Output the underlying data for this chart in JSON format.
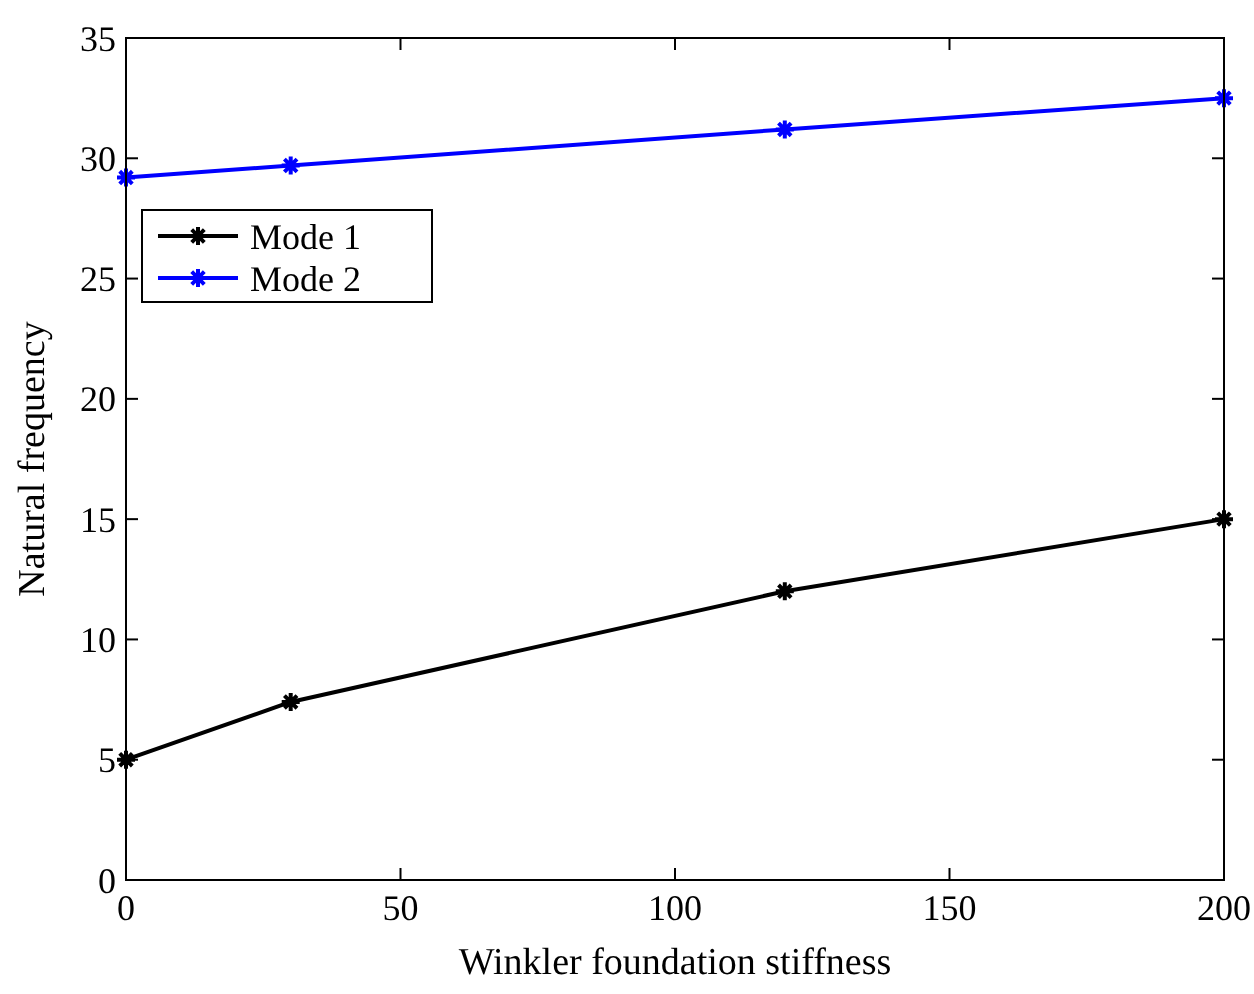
{
  "chart_data": {
    "type": "line",
    "xlabel": "Winkler foundation stiffness",
    "ylabel": "Natural frequency",
    "x": [
      0,
      30,
      120,
      200
    ],
    "series": [
      {
        "name": "Mode 1",
        "color": "#000000",
        "values": [
          5.0,
          7.4,
          12.0,
          15.0
        ]
      },
      {
        "name": "Mode 2",
        "color": "#0000ff",
        "values": [
          29.2,
          29.7,
          31.2,
          32.5
        ]
      }
    ],
    "xlim": [
      0,
      200
    ],
    "xticks": [
      0,
      50,
      100,
      150,
      200
    ],
    "ylim": [
      0,
      35
    ],
    "yticks": [
      0,
      5,
      10,
      15,
      20,
      25,
      30,
      35
    ],
    "grid": false,
    "legend": "top left",
    "marker": "cross",
    "line_style": "solid"
  }
}
